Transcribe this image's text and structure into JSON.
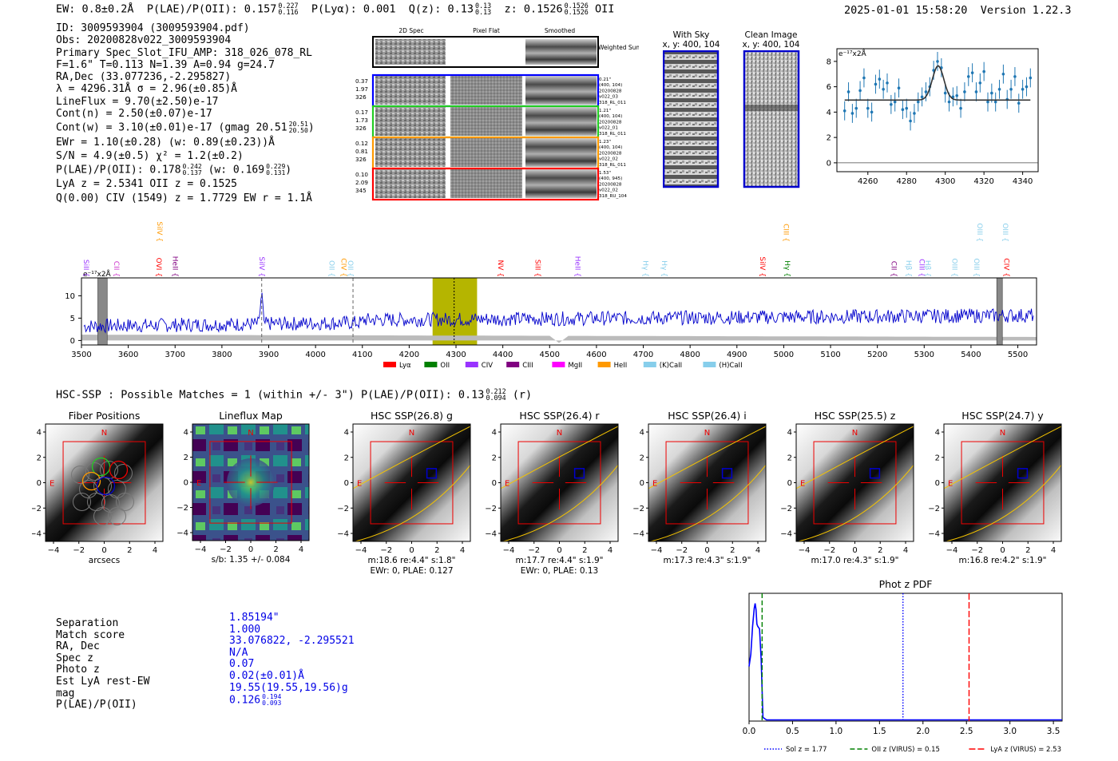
{
  "header": {
    "ew": "EW: 0.8±0.2Å",
    "plae": "P(LAE)/P(OII): 0.157",
    "plae_hi": "0.227",
    "plae_lo": "0.116",
    "plya": "P(Lyα): 0.001",
    "qz": "Q(z): 0.13",
    "qz_hi": "0.13",
    "qz_lo": "0.13",
    "z": "z: 0.1526",
    "z_hi": "0.1526",
    "z_lo": "0.1526",
    "z_line": "OII",
    "datetime": "2025-01-01 15:58:20",
    "version": "Version 1.22.3"
  },
  "info": {
    "lines": [
      "ID: 3009593904 (3009593904.pdf)",
      "Obs: 20200828v022_3009593904",
      "Primary Spec_Slot_IFU_AMP: 318_026_078_RL",
      "F=1.6\"  T=0.113  N=1.39  A=0.94  g=24.7",
      "RA,Dec (33.077236,-2.295827)",
      "λ = 4296.31Å   σ = 2.96(±0.85)Å",
      "LineFlux = 9.70(±2.50)e-17",
      "Cont(n) = 2.50(±0.07)e-17"
    ],
    "contw": "Cont(w) = 3.10(±0.01)e-17 (gmag 20.51",
    "contw_hi": "20.51",
    "contw_lo": "20.50",
    "ewr": "EWr = 1.10(±0.28) (w: 0.89(±0.23))Å",
    "sn": "S/N = 4.9(±0.5)   χ² = 1.2(±0.2)",
    "plae_a": "P(LAE)/P(OII): 0.178",
    "plae_a_hi": "0.242",
    "plae_a_lo": "0.137",
    "plae_b": "(w: 0.169",
    "plae_b_hi": "0.229",
    "plae_b_lo": "0.131",
    "lya": "LyA z = 2.5341   OII z = 0.1525",
    "civ": "Q(0.00) CIV (1549) z = 1.7729   EW r = 1.1Å"
  },
  "cutouts": {
    "col_labels": [
      "2D Spec",
      "Pixel Flat",
      "Smoothed"
    ],
    "weighted_sum": "Weighted Sum",
    "rows": [
      {
        "left": [
          "0.37",
          "1.97",
          "326"
        ],
        "right": [
          "0.21\"",
          "(400, 104)",
          "20200828",
          "v022_03",
          "318_RL_011"
        ],
        "color": "#0000ff"
      },
      {
        "left": [
          "0.17",
          "1.73",
          "326"
        ],
        "right": [
          "1.21\"",
          "(400, 104)",
          "20200828",
          "v022_01",
          "318_RL_011"
        ],
        "color": "#22cc22"
      },
      {
        "left": [
          "0.12",
          "0.81",
          "326"
        ],
        "right": [
          "1.23\"",
          "(400, 104)",
          "20200828",
          "v022_02",
          "318_RL_011"
        ],
        "color": "#ff9900"
      },
      {
        "left": [
          "0.10",
          "2.09",
          "345"
        ],
        "right": [
          "1.53\"",
          "(400, 945)",
          "20200828",
          "v022_02",
          "318_RU_104"
        ],
        "color": "#ff0000"
      }
    ]
  },
  "sky": {
    "with_sky_title": "With Sky",
    "with_sky_sub": "x, y: 400, 104",
    "clean_title": "Clean Image",
    "clean_sub": "x, y: 400, 104"
  },
  "zoom_chart": {
    "type": "scatter",
    "unit_label": "e⁻¹⁷x2Å",
    "xlim": [
      4244,
      4348
    ],
    "ylim": [
      -0.7,
      9
    ],
    "xticks": [
      4260,
      4280,
      4300,
      4320,
      4340
    ],
    "yticks": [
      0,
      2,
      4,
      6,
      8
    ],
    "x": [
      4248,
      4250,
      4252,
      4254,
      4256,
      4258,
      4260,
      4262,
      4264,
      4266,
      4268,
      4270,
      4272,
      4274,
      4276,
      4278,
      4280,
      4282,
      4284,
      4286,
      4288,
      4290,
      4292,
      4294,
      4296,
      4298,
      4300,
      4302,
      4304,
      4306,
      4308,
      4310,
      4312,
      4314,
      4316,
      4318,
      4320,
      4322,
      4324,
      4326,
      4328,
      4330,
      4332,
      4334,
      4336,
      4338,
      4340,
      4342,
      4344
    ],
    "y": [
      4.1,
      5.6,
      3.9,
      4.3,
      5.7,
      6.7,
      4.3,
      4.0,
      6.2,
      6.6,
      5.8,
      6.3,
      4.6,
      4.8,
      5.9,
      4.2,
      4.3,
      3.3,
      3.9,
      4.8,
      5.2,
      5.6,
      6.0,
      7.3,
      8.0,
      7.5,
      5.5,
      4.8,
      5.2,
      5.3,
      4.3,
      5.6,
      6.8,
      7.1,
      5.6,
      6.3,
      7.2,
      4.8,
      5.5,
      4.8,
      5.8,
      7.0,
      5.0,
      5.8,
      6.8,
      4.7,
      5.8,
      6.0,
      6.7
    ],
    "model": {
      "continuum": 4.95,
      "center": 4296.3,
      "sigma": 2.96,
      "amplitude": 2.7
    }
  },
  "spectrum": {
    "unit_label": "e⁻¹⁷x2Å",
    "xlim": [
      3500,
      5540
    ],
    "ylim": [
      -1,
      14
    ],
    "xticks": [
      3500,
      3600,
      3700,
      3800,
      3900,
      4000,
      4100,
      4200,
      4300,
      4400,
      4500,
      4600,
      4700,
      4800,
      4900,
      5000,
      5100,
      5200,
      5300,
      5400,
      5500
    ],
    "yticks": [
      0,
      5,
      10
    ],
    "line_marks": [
      {
        "label": "SiII",
        "x": 3505,
        "color": "#9933ff",
        "row": "low"
      },
      {
        "label": "CII",
        "x": 3570,
        "color": "#cc33cc",
        "row": "low"
      },
      {
        "label": "SiIV",
        "x": 3662,
        "color": "#ff9900",
        "row": "high"
      },
      {
        "label": "OVI",
        "x": 3660,
        "color": "#ff0000",
        "row": "low"
      },
      {
        "label": "HeII",
        "x": 3695,
        "color": "#800080",
        "row": "low"
      },
      {
        "label": "SiIV",
        "x": 3880,
        "color": "#9933ff",
        "row": "low"
      },
      {
        "label": "OII",
        "x": 4030,
        "color": "#87ceeb",
        "row": "low"
      },
      {
        "label": "CIV",
        "x": 4055,
        "color": "#ff9900",
        "row": "low"
      },
      {
        "label": "OII",
        "x": 4070,
        "color": "#87ceeb",
        "row": "low"
      },
      {
        "label": "NV",
        "x": 4390,
        "color": "#ff0000",
        "row": "low"
      },
      {
        "label": "SiII",
        "x": 4470,
        "color": "#ff0000",
        "row": "low"
      },
      {
        "label": "HeII",
        "x": 4555,
        "color": "#9933ff",
        "row": "low"
      },
      {
        "label": "Hγ",
        "x": 4700,
        "color": "#87ceeb",
        "row": "low"
      },
      {
        "label": "Hγ",
        "x": 4740,
        "color": "#87ceeb",
        "row": "low"
      },
      {
        "label": "SiIV",
        "x": 4950,
        "color": "#ff0000",
        "row": "low"
      },
      {
        "label": "CIII",
        "x": 5000,
        "color": "#ff9900",
        "row": "high"
      },
      {
        "label": "Hγ",
        "x": 5003,
        "color": "#008000",
        "row": "low"
      },
      {
        "label": "CII",
        "x": 5230,
        "color": "#800080",
        "row": "low"
      },
      {
        "label": "Hβ",
        "x": 5262,
        "color": "#87ceeb",
        "row": "low"
      },
      {
        "label": "CIII",
        "x": 5290,
        "color": "#9933ff",
        "row": "low"
      },
      {
        "label": "Hβ",
        "x": 5303,
        "color": "#87ceeb",
        "row": "low"
      },
      {
        "label": "OIII",
        "x": 5360,
        "color": "#87ceeb",
        "row": "low"
      },
      {
        "label": "OIII",
        "x": 5414,
        "color": "#87ceeb",
        "row": "high"
      },
      {
        "label": "OIII",
        "x": 5407,
        "color": "#87ceeb",
        "row": "low"
      },
      {
        "label": "OIII",
        "x": 5468,
        "color": "#87ceeb",
        "row": "high"
      },
      {
        "label": "CIV",
        "x": 5471,
        "color": "#ff0000",
        "row": "low"
      }
    ],
    "highlight": {
      "from": 4250,
      "to": 4345
    },
    "dashed_lines": [
      3885,
      4080,
      4296
    ],
    "bad_regions": [
      [
        3535,
        3555
      ],
      [
        5455,
        5467
      ]
    ],
    "legend": [
      {
        "label": "Lyα",
        "color": "#ff0000"
      },
      {
        "label": "OII",
        "color": "#008000"
      },
      {
        "label": "CIV",
        "color": "#9933ff"
      },
      {
        "label": "CIII",
        "color": "#800080"
      },
      {
        "label": "MgII",
        "color": "#ff00ff"
      },
      {
        "label": "HeII",
        "color": "#ff9900"
      },
      {
        "label": "(K)CaII",
        "color": "#87ceeb"
      },
      {
        "label": "(H)CaII",
        "color": "#87ceeb"
      }
    ]
  },
  "hsc": {
    "summary": "HSC-SSP : Possible Matches = 1 (within +/- 3\")  P(LAE)/P(OII): 0.13",
    "summary_hi": "0.212",
    "summary_lo": "0.094",
    "summary_tail": "(r)",
    "ticks": [
      "4",
      "2",
      "0",
      "−2",
      "−4"
    ],
    "xticks": [
      "−4",
      "−2",
      "0",
      "2",
      "4"
    ],
    "panels": [
      {
        "title": "Fiber Positions",
        "line1": "arcsecs",
        "line2": ""
      },
      {
        "title": "Lineflux Map",
        "line1": "s/b: 1.35 +/- 0.084",
        "line2": ""
      },
      {
        "title": "HSC SSP(26.8) g",
        "line1": "m:18.6  re:4.4\"  s:1.8\"",
        "line2": "EWr: 0, PLAE: 0.127"
      },
      {
        "title": "HSC SSP(26.4) r",
        "line1": "m:17.7  re:4.4\"  s:1.9\"",
        "line2": "EWr: 0, PLAE: 0.13"
      },
      {
        "title": "HSC SSP(26.4) i",
        "line1": "m:17.3  re:4.3\"  s:1.9\"",
        "line2": ""
      },
      {
        "title": "HSC SSP(25.5) z",
        "line1": "m:17.0  re:4.3\"  s:1.9\"",
        "line2": ""
      },
      {
        "title": "HSC SSP(24.7) y",
        "line1": "m:16.8  re:4.2\"  s:1.9\"",
        "line2": ""
      }
    ],
    "north": "N",
    "east": "E"
  },
  "match": {
    "labels": [
      "Separation",
      "Match score",
      "RA, Dec",
      "Spec z",
      "Photo z",
      "Est LyA rest-EW",
      "mag",
      "P(LAE)/P(OII)"
    ],
    "values": [
      "1.85194\"",
      "1.000",
      "33.076822, -2.295521",
      "N/A",
      "0.07",
      "0.02(±0.01)Å",
      "19.55(19.55,19.56)g",
      "0.126"
    ],
    "plae_hi": "0.194",
    "plae_lo": "0.093"
  },
  "photz": {
    "title": "Phot z PDF",
    "xlim": [
      0,
      3.6
    ],
    "xticks": [
      "0.0",
      "0.5",
      "1.0",
      "1.5",
      "2.0",
      "2.5",
      "3.0",
      "3.5"
    ],
    "pdf_x": [
      0.0,
      0.02,
      0.04,
      0.06,
      0.07,
      0.08,
      0.09,
      0.1,
      0.12,
      0.14,
      0.16,
      0.2,
      0.3,
      0.5,
      1.0,
      2.0,
      3.6
    ],
    "pdf_y": [
      0.45,
      0.55,
      0.78,
      0.93,
      0.97,
      0.92,
      0.8,
      0.78,
      0.76,
      0.5,
      0.03,
      0.01,
      0.01,
      0.01,
      0.01,
      0.01,
      0.01
    ],
    "lines": [
      {
        "z": 1.77,
        "color": "#0000ff",
        "dash": "1.5,2",
        "label": "Sol z = 1.77"
      },
      {
        "z": 0.15,
        "color": "#008000",
        "dash": "6,3",
        "label": "OII z (VIRUS) = 0.15"
      },
      {
        "z": 2.53,
        "color": "#ff0000",
        "dash": "8,3",
        "label": "LyA z (VIRUS) = 2.53"
      }
    ]
  },
  "colors": {
    "spectrum": "#0000cc",
    "fill": "#bbbbbb",
    "highlight": "#b5b500"
  }
}
